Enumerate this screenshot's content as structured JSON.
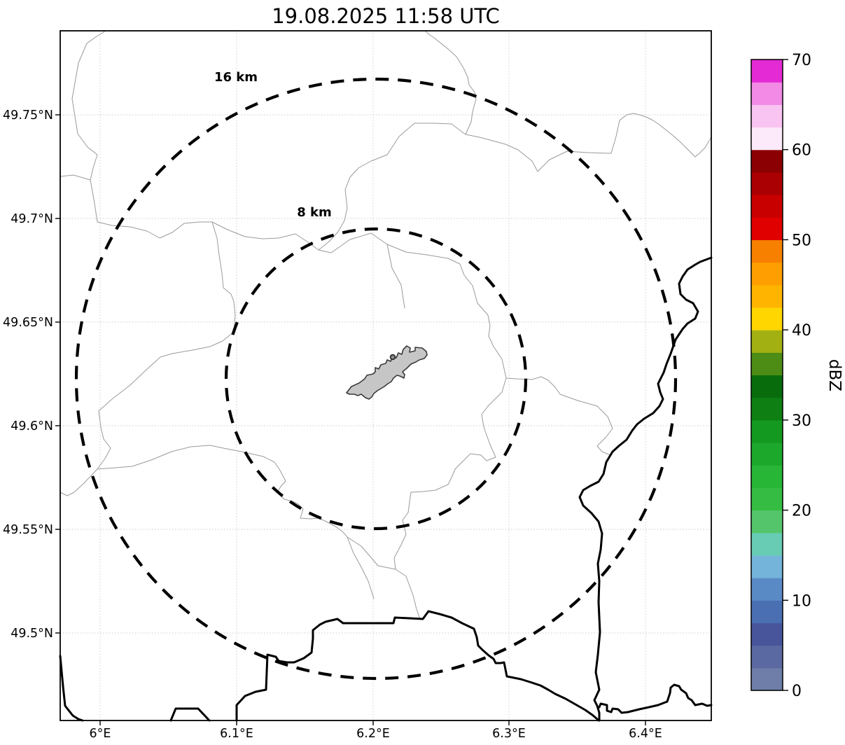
{
  "figure": {
    "title": "19.08.2025 11:58 UTC"
  },
  "map": {
    "x_tick_labels": [
      "6°E",
      "6.1°E",
      "6.2°E",
      "6.3°E",
      "6.4°E"
    ],
    "y_tick_labels": [
      "49.75°N",
      "49.7°N",
      "49.65°N",
      "49.6°N",
      "49.55°N",
      "49.5°N"
    ],
    "range_ring_labels": [
      "16 km",
      "8 km"
    ]
  },
  "colorbar": {
    "label": "dBZ",
    "tick_labels": [
      "70",
      "60",
      "50",
      "40",
      "30",
      "20",
      "10",
      "0"
    ],
    "segment_colors": [
      "#6e7ea8",
      "#5b69a2",
      "#48559b",
      "#4a6fb3",
      "#5a8ac5",
      "#74b3da",
      "#68ccb4",
      "#55c56c",
      "#35bd43",
      "#28b637",
      "#1ca92b",
      "#13991f",
      "#0e8013",
      "#086c0c",
      "#4d8c15",
      "#a3b011",
      "#ffd600",
      "#ffb500",
      "#ff9e00",
      "#f88000",
      "#e00000",
      "#c90000",
      "#ab0003",
      "#8b0002",
      "#fce9f9",
      "#f9c4f1",
      "#f28ae6",
      "#e32ad4"
    ]
  }
}
